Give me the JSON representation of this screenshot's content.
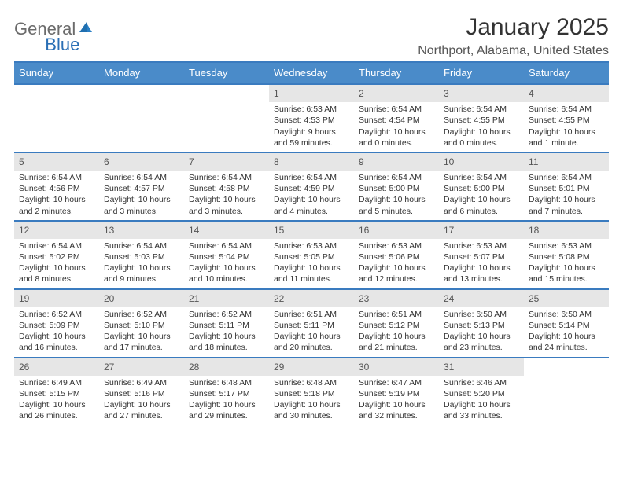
{
  "logo": {
    "word1": "General",
    "word2": "Blue",
    "word1_color": "#6b6b6b",
    "word2_color": "#2a6fb5"
  },
  "title": "January 2025",
  "location": "Northport, Alabama, United States",
  "colors": {
    "header_border": "#3a7bbf",
    "dow_bg": "#4a8bc9",
    "dow_text": "#ffffff",
    "daynum_bg": "#e6e6e6",
    "body_text": "#333333"
  },
  "dow": [
    "Sunday",
    "Monday",
    "Tuesday",
    "Wednesday",
    "Thursday",
    "Friday",
    "Saturday"
  ],
  "weeks": [
    [
      {
        "n": "",
        "sr": "",
        "ss": "",
        "dl": ""
      },
      {
        "n": "",
        "sr": "",
        "ss": "",
        "dl": ""
      },
      {
        "n": "",
        "sr": "",
        "ss": "",
        "dl": ""
      },
      {
        "n": "1",
        "sr": "Sunrise: 6:53 AM",
        "ss": "Sunset: 4:53 PM",
        "dl": "Daylight: 9 hours and 59 minutes."
      },
      {
        "n": "2",
        "sr": "Sunrise: 6:54 AM",
        "ss": "Sunset: 4:54 PM",
        "dl": "Daylight: 10 hours and 0 minutes."
      },
      {
        "n": "3",
        "sr": "Sunrise: 6:54 AM",
        "ss": "Sunset: 4:55 PM",
        "dl": "Daylight: 10 hours and 0 minutes."
      },
      {
        "n": "4",
        "sr": "Sunrise: 6:54 AM",
        "ss": "Sunset: 4:55 PM",
        "dl": "Daylight: 10 hours and 1 minute."
      }
    ],
    [
      {
        "n": "5",
        "sr": "Sunrise: 6:54 AM",
        "ss": "Sunset: 4:56 PM",
        "dl": "Daylight: 10 hours and 2 minutes."
      },
      {
        "n": "6",
        "sr": "Sunrise: 6:54 AM",
        "ss": "Sunset: 4:57 PM",
        "dl": "Daylight: 10 hours and 3 minutes."
      },
      {
        "n": "7",
        "sr": "Sunrise: 6:54 AM",
        "ss": "Sunset: 4:58 PM",
        "dl": "Daylight: 10 hours and 3 minutes."
      },
      {
        "n": "8",
        "sr": "Sunrise: 6:54 AM",
        "ss": "Sunset: 4:59 PM",
        "dl": "Daylight: 10 hours and 4 minutes."
      },
      {
        "n": "9",
        "sr": "Sunrise: 6:54 AM",
        "ss": "Sunset: 5:00 PM",
        "dl": "Daylight: 10 hours and 5 minutes."
      },
      {
        "n": "10",
        "sr": "Sunrise: 6:54 AM",
        "ss": "Sunset: 5:00 PM",
        "dl": "Daylight: 10 hours and 6 minutes."
      },
      {
        "n": "11",
        "sr": "Sunrise: 6:54 AM",
        "ss": "Sunset: 5:01 PM",
        "dl": "Daylight: 10 hours and 7 minutes."
      }
    ],
    [
      {
        "n": "12",
        "sr": "Sunrise: 6:54 AM",
        "ss": "Sunset: 5:02 PM",
        "dl": "Daylight: 10 hours and 8 minutes."
      },
      {
        "n": "13",
        "sr": "Sunrise: 6:54 AM",
        "ss": "Sunset: 5:03 PM",
        "dl": "Daylight: 10 hours and 9 minutes."
      },
      {
        "n": "14",
        "sr": "Sunrise: 6:54 AM",
        "ss": "Sunset: 5:04 PM",
        "dl": "Daylight: 10 hours and 10 minutes."
      },
      {
        "n": "15",
        "sr": "Sunrise: 6:53 AM",
        "ss": "Sunset: 5:05 PM",
        "dl": "Daylight: 10 hours and 11 minutes."
      },
      {
        "n": "16",
        "sr": "Sunrise: 6:53 AM",
        "ss": "Sunset: 5:06 PM",
        "dl": "Daylight: 10 hours and 12 minutes."
      },
      {
        "n": "17",
        "sr": "Sunrise: 6:53 AM",
        "ss": "Sunset: 5:07 PM",
        "dl": "Daylight: 10 hours and 13 minutes."
      },
      {
        "n": "18",
        "sr": "Sunrise: 6:53 AM",
        "ss": "Sunset: 5:08 PM",
        "dl": "Daylight: 10 hours and 15 minutes."
      }
    ],
    [
      {
        "n": "19",
        "sr": "Sunrise: 6:52 AM",
        "ss": "Sunset: 5:09 PM",
        "dl": "Daylight: 10 hours and 16 minutes."
      },
      {
        "n": "20",
        "sr": "Sunrise: 6:52 AM",
        "ss": "Sunset: 5:10 PM",
        "dl": "Daylight: 10 hours and 17 minutes."
      },
      {
        "n": "21",
        "sr": "Sunrise: 6:52 AM",
        "ss": "Sunset: 5:11 PM",
        "dl": "Daylight: 10 hours and 18 minutes."
      },
      {
        "n": "22",
        "sr": "Sunrise: 6:51 AM",
        "ss": "Sunset: 5:11 PM",
        "dl": "Daylight: 10 hours and 20 minutes."
      },
      {
        "n": "23",
        "sr": "Sunrise: 6:51 AM",
        "ss": "Sunset: 5:12 PM",
        "dl": "Daylight: 10 hours and 21 minutes."
      },
      {
        "n": "24",
        "sr": "Sunrise: 6:50 AM",
        "ss": "Sunset: 5:13 PM",
        "dl": "Daylight: 10 hours and 23 minutes."
      },
      {
        "n": "25",
        "sr": "Sunrise: 6:50 AM",
        "ss": "Sunset: 5:14 PM",
        "dl": "Daylight: 10 hours and 24 minutes."
      }
    ],
    [
      {
        "n": "26",
        "sr": "Sunrise: 6:49 AM",
        "ss": "Sunset: 5:15 PM",
        "dl": "Daylight: 10 hours and 26 minutes."
      },
      {
        "n": "27",
        "sr": "Sunrise: 6:49 AM",
        "ss": "Sunset: 5:16 PM",
        "dl": "Daylight: 10 hours and 27 minutes."
      },
      {
        "n": "28",
        "sr": "Sunrise: 6:48 AM",
        "ss": "Sunset: 5:17 PM",
        "dl": "Daylight: 10 hours and 29 minutes."
      },
      {
        "n": "29",
        "sr": "Sunrise: 6:48 AM",
        "ss": "Sunset: 5:18 PM",
        "dl": "Daylight: 10 hours and 30 minutes."
      },
      {
        "n": "30",
        "sr": "Sunrise: 6:47 AM",
        "ss": "Sunset: 5:19 PM",
        "dl": "Daylight: 10 hours and 32 minutes."
      },
      {
        "n": "31",
        "sr": "Sunrise: 6:46 AM",
        "ss": "Sunset: 5:20 PM",
        "dl": "Daylight: 10 hours and 33 minutes."
      },
      {
        "n": "",
        "sr": "",
        "ss": "",
        "dl": ""
      }
    ]
  ]
}
